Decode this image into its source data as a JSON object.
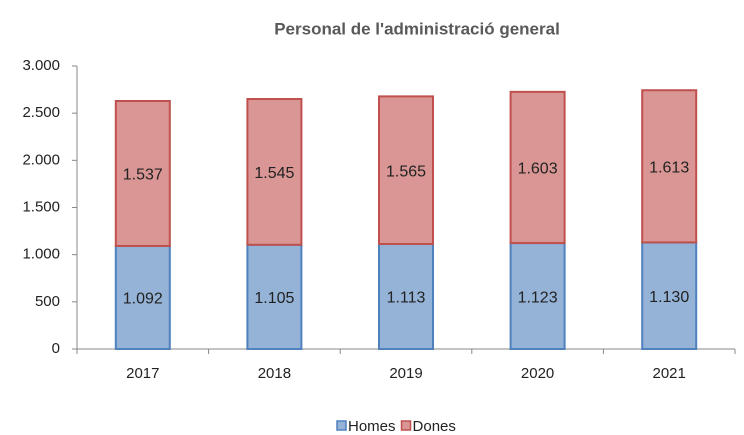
{
  "chart_data": {
    "type": "stacked_bar",
    "title": "Personal de l'administració general",
    "categories": [
      "2017",
      "2018",
      "2019",
      "2020",
      "2021"
    ],
    "series": [
      {
        "name": "Homes",
        "color": "#95b3d7",
        "stroke": "#4f81bd",
        "values": [
          1092,
          1105,
          1113,
          1123,
          1130
        ],
        "value_labels": [
          "1.092",
          "1.105",
          "1.113",
          "1.123",
          "1.130"
        ]
      },
      {
        "name": "Dones",
        "color": "#d99694",
        "stroke": "#c0504d",
        "values": [
          1537,
          1545,
          1565,
          1603,
          1613
        ],
        "value_labels": [
          "1.537",
          "1.545",
          "1.565",
          "1.603",
          "1.613"
        ]
      }
    ],
    "ylim": [
      0,
      3000
    ],
    "yticks": [
      0,
      500,
      {
        "value": 1000,
        "label": "1.000"
      },
      {
        "value": 1500,
        "label": "1.500"
      },
      {
        "value": 2000,
        "label": "2.000"
      },
      {
        "value": 2500,
        "label": "2.500"
      },
      {
        "value": 3000,
        "label": "3.000"
      }
    ],
    "legend": "bottom"
  }
}
